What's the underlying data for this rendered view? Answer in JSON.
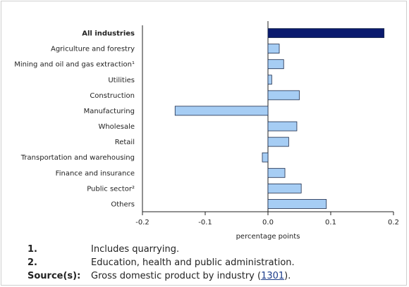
{
  "chart_data": {
    "type": "bar",
    "orientation": "horizontal",
    "categories": [
      "All industries",
      "Agriculture and forestry",
      "Mining and oil and gas extraction¹",
      "Utilities",
      "Construction",
      "Manufacturing",
      "Wholesale",
      "Retail",
      "Transportation and warehousing",
      "Finance and insurance",
      "Public sector²",
      "Others"
    ],
    "values": [
      0.185,
      0.018,
      0.025,
      0.006,
      0.05,
      -0.148,
      0.046,
      0.033,
      -0.009,
      0.027,
      0.053,
      0.093
    ],
    "highlight_index": 0,
    "xlabel": "percentage points",
    "ylabel": "",
    "xlim": [
      -0.2,
      0.2
    ],
    "xticks": [
      -0.2,
      -0.1,
      0.0,
      0.1,
      0.2
    ],
    "xtick_labels": [
      "-0.2",
      "-0.1",
      "0.0",
      "0.1",
      "0.2"
    ],
    "grid": false,
    "colors": {
      "highlight": "#0a1a6e",
      "bar": "#a6cdf4",
      "bar_stroke": "#1b2a4a",
      "axis": "#222222"
    }
  },
  "notes": [
    {
      "key": "1.",
      "text": "Includes quarrying."
    },
    {
      "key": "2.",
      "text": "Education, health and public administration."
    }
  ],
  "source": {
    "key": "Source(s):",
    "text_before": "Gross domestic product by industry (",
    "link": "1301",
    "text_after": ")."
  }
}
